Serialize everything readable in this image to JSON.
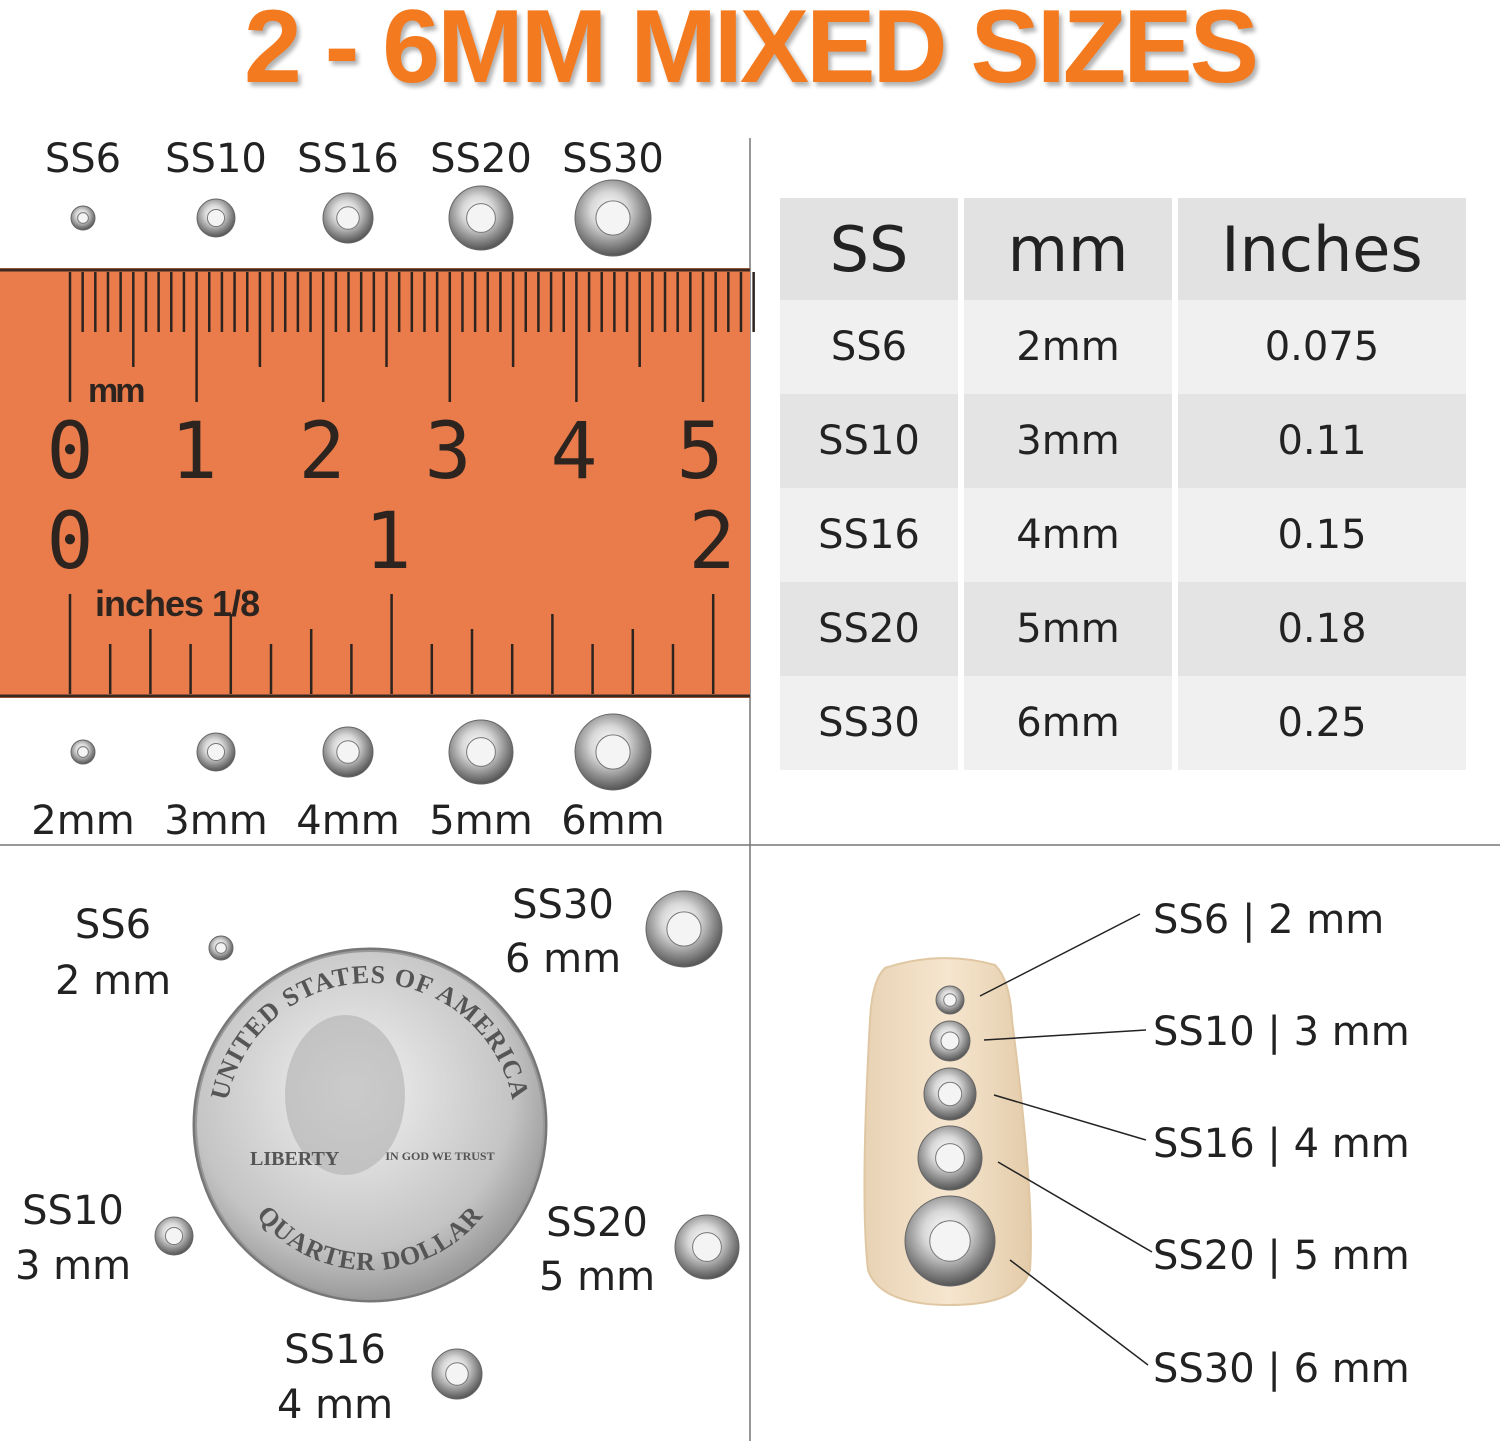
{
  "title": "2 - 6MM MIXED SIZES",
  "colors": {
    "accent": "#f47a20",
    "ruler": "#e97c4a"
  },
  "ruler": {
    "top_labels": [
      "SS6",
      "SS10",
      "SS16",
      "SS20",
      "SS30"
    ],
    "bottom_labels": [
      "2mm",
      "3mm",
      "4mm",
      "5mm",
      "6mm"
    ],
    "mm_unit": "mm",
    "mm_numbers": [
      "0",
      "1",
      "2",
      "3",
      "4",
      "5"
    ],
    "inch_numbers": [
      "0",
      "1",
      "2"
    ],
    "inch_unit": "inches 1/8"
  },
  "table": {
    "headers": [
      "SS",
      "mm",
      "Inches"
    ],
    "rows": [
      [
        "SS6",
        "2mm",
        "0.075"
      ],
      [
        "SS10",
        "3mm",
        "0.11"
      ],
      [
        "SS16",
        "4mm",
        "0.15"
      ],
      [
        "SS20",
        "5mm",
        "0.18"
      ],
      [
        "SS30",
        "6mm",
        "0.25"
      ]
    ]
  },
  "coin": {
    "labels": [
      {
        "ss": "SS6",
        "mm": "2 mm"
      },
      {
        "ss": "SS30",
        "mm": "6 mm"
      },
      {
        "ss": "SS10",
        "mm": "3 mm"
      },
      {
        "ss": "SS20",
        "mm": "5 mm"
      },
      {
        "ss": "SS16",
        "mm": "4 mm"
      }
    ],
    "coin_text": {
      "top": "UNITED STATES OF AMERICA",
      "bottom": "QUARTER DOLLAR",
      "liberty": "LIBERTY",
      "motto": "IN GOD WE TRUST"
    }
  },
  "nail": {
    "labels": [
      "SS6 | 2 mm",
      "SS10 | 3 mm",
      "SS16 | 4 mm",
      "SS20 | 5 mm",
      "SS30 | 6 mm"
    ]
  }
}
